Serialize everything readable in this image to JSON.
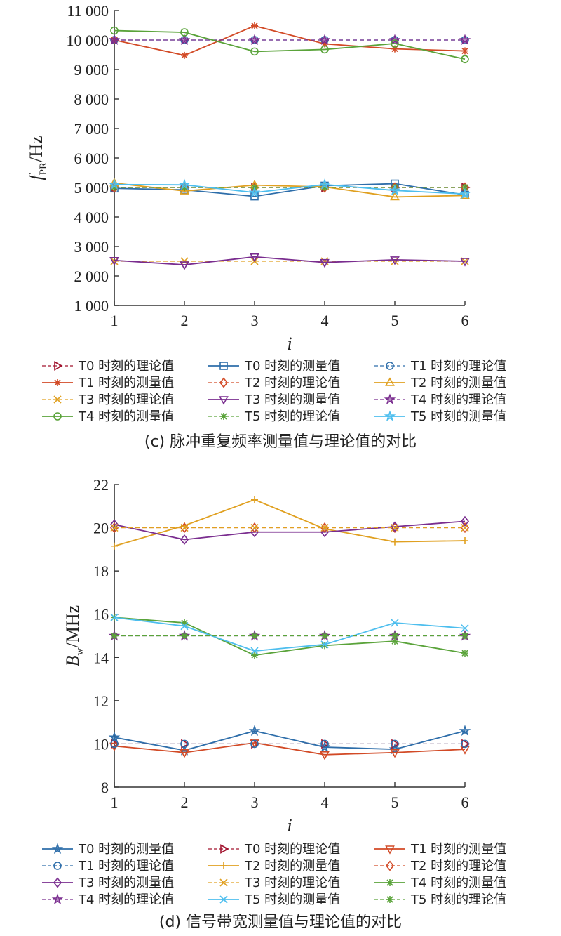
{
  "chart_data": [
    {
      "type": "line",
      "caption": "(c) 脉冲重复频率测量值与理论值的对比",
      "xlabel": "i",
      "ylabel_main": "f",
      "ylabel_sub": "PR",
      "ylabel_unit": "/Hz",
      "xlim": [
        1,
        6
      ],
      "ylim": [
        1000,
        11000
      ],
      "x": [
        1,
        2,
        3,
        4,
        5,
        6
      ],
      "xticks": [
        "1",
        "2",
        "3",
        "4",
        "5",
        "6"
      ],
      "yticks": [
        {
          "v": 1000,
          "label": "1 000"
        },
        {
          "v": 2000,
          "label": "2 000"
        },
        {
          "v": 3000,
          "label": "3 000"
        },
        {
          "v": 4000,
          "label": "4 000"
        },
        {
          "v": 5000,
          "label": "5 000"
        },
        {
          "v": 6000,
          "label": "6 000"
        },
        {
          "v": 7000,
          "label": "7 000"
        },
        {
          "v": 8000,
          "label": "8 000"
        },
        {
          "v": 9000,
          "label": "9 000"
        },
        {
          "v": 10000,
          "label": "10 000"
        },
        {
          "v": 11000,
          "label": "11 000"
        }
      ],
      "grid": false,
      "legend_position": "bottom",
      "series": [
        {
          "name": "T0 时刻的理论值",
          "color": "#a2142f",
          "dash": true,
          "marker": "tri-right",
          "values": [
            5000,
            5000,
            5000,
            5000,
            5000,
            5000
          ]
        },
        {
          "name": "T0 时刻的测量值",
          "color": "#2e6eaa",
          "dash": false,
          "marker": "square",
          "values": [
            4970,
            4920,
            4700,
            5060,
            5130,
            4750
          ]
        },
        {
          "name": "T1 时刻的理论值",
          "color": "#2e6eaa",
          "dash": true,
          "marker": "circle",
          "values": [
            10000,
            10000,
            10000,
            10000,
            10000,
            10000
          ]
        },
        {
          "name": "T1 时刻的测量值",
          "color": "#d24a26",
          "dash": false,
          "marker": "asterisk",
          "values": [
            10000,
            9480,
            10480,
            9870,
            9700,
            9630
          ]
        },
        {
          "name": "T2 时刻的理论值",
          "color": "#d24a26",
          "dash": true,
          "marker": "diamond",
          "values": [
            5000,
            5000,
            5000,
            5000,
            5000,
            5000
          ]
        },
        {
          "name": "T2 时刻的测量值",
          "color": "#e0a020",
          "dash": false,
          "marker": "tri-up",
          "values": [
            5150,
            4880,
            5080,
            5020,
            4680,
            4730
          ]
        },
        {
          "name": "T3 时刻的理论值",
          "color": "#e0a020",
          "dash": true,
          "marker": "x",
          "values": [
            2500,
            2500,
            2500,
            2500,
            2500,
            2500
          ]
        },
        {
          "name": "T3 时刻的测量值",
          "color": "#7a2d8f",
          "dash": false,
          "marker": "tri-down",
          "values": [
            2530,
            2380,
            2650,
            2460,
            2550,
            2500
          ]
        },
        {
          "name": "T4 时刻的理论值",
          "color": "#7a2d8f",
          "dash": true,
          "marker": "star",
          "values": [
            10000,
            10000,
            10000,
            10000,
            10000,
            10000
          ]
        },
        {
          "name": "T4 时刻的测量值",
          "color": "#5aa33a",
          "dash": false,
          "marker": "circle",
          "values": [
            10320,
            10260,
            9610,
            9680,
            9880,
            9350
          ]
        },
        {
          "name": "T5 时刻的理论值",
          "color": "#5aa33a",
          "dash": true,
          "marker": "asterisk",
          "values": [
            5000,
            5000,
            5000,
            5000,
            5000,
            5000
          ]
        },
        {
          "name": "T5 时刻的测量值",
          "color": "#4dbeee",
          "dash": false,
          "marker": "star",
          "values": [
            5100,
            5090,
            4830,
            5100,
            4900,
            4780
          ]
        }
      ]
    },
    {
      "type": "line",
      "caption": "(d) 信号带宽测量值与理论值的对比",
      "xlabel": "i",
      "ylabel_main": "B",
      "ylabel_sub": "w",
      "ylabel_unit": "/MHz",
      "xlim": [
        1,
        6
      ],
      "ylim": [
        8,
        22
      ],
      "x": [
        1,
        2,
        3,
        4,
        5,
        6
      ],
      "xticks": [
        "1",
        "2",
        "3",
        "4",
        "5",
        "6"
      ],
      "yticks": [
        {
          "v": 8,
          "label": "8"
        },
        {
          "v": 10,
          "label": "10"
        },
        {
          "v": 12,
          "label": "12"
        },
        {
          "v": 14,
          "label": "14"
        },
        {
          "v": 16,
          "label": "16"
        },
        {
          "v": 18,
          "label": "18"
        },
        {
          "v": 20,
          "label": "20"
        },
        {
          "v": 22,
          "label": "22"
        }
      ],
      "grid": false,
      "legend_position": "bottom",
      "series": [
        {
          "name": "T0 时刻的测量值",
          "color": "#2e6eaa",
          "dash": false,
          "marker": "star",
          "values": [
            10.3,
            9.7,
            10.6,
            9.85,
            9.75,
            10.6
          ]
        },
        {
          "name": "T0 时刻的理论值",
          "color": "#a2142f",
          "dash": true,
          "marker": "tri-right",
          "values": [
            10,
            10,
            10,
            10,
            10,
            10
          ]
        },
        {
          "name": "T1 时刻的测量值",
          "color": "#d24a26",
          "dash": false,
          "marker": "tri-down",
          "values": [
            9.9,
            9.6,
            10.05,
            9.5,
            9.6,
            9.75
          ]
        },
        {
          "name": "T1 时刻的理论值",
          "color": "#2e6eaa",
          "dash": true,
          "marker": "circle",
          "values": [
            10,
            10,
            10,
            10,
            10,
            10
          ]
        },
        {
          "name": "T2 时刻的测量值",
          "color": "#e0a020",
          "dash": false,
          "marker": "plus",
          "values": [
            19.15,
            20.1,
            21.3,
            19.95,
            19.35,
            19.4
          ]
        },
        {
          "name": "T2 时刻的理论值",
          "color": "#d24a26",
          "dash": true,
          "marker": "diamond",
          "values": [
            20,
            20,
            20,
            20,
            20,
            20
          ]
        },
        {
          "name": "T3 时刻的测量值",
          "color": "#7a2d8f",
          "dash": false,
          "marker": "diamond",
          "values": [
            20.15,
            19.45,
            19.8,
            19.8,
            20.05,
            20.3
          ]
        },
        {
          "name": "T3 时刻的理论值",
          "color": "#e0a020",
          "dash": true,
          "marker": "x",
          "values": [
            20,
            20,
            20,
            20,
            20,
            20
          ]
        },
        {
          "name": "T4 时刻的测量值",
          "color": "#5aa33a",
          "dash": false,
          "marker": "asterisk",
          "values": [
            15.85,
            15.6,
            14.1,
            14.55,
            14.75,
            14.2
          ]
        },
        {
          "name": "T4 时刻的理论值",
          "color": "#7a2d8f",
          "dash": true,
          "marker": "star",
          "values": [
            15,
            15,
            15,
            15,
            15,
            15
          ]
        },
        {
          "name": "T5 时刻的测量值",
          "color": "#4dbeee",
          "dash": false,
          "marker": "x",
          "values": [
            15.85,
            15.45,
            14.3,
            14.6,
            15.6,
            15.35
          ]
        },
        {
          "name": "T5 时刻的理论值",
          "color": "#5aa33a",
          "dash": true,
          "marker": "asterisk",
          "values": [
            15,
            15,
            15,
            15,
            15,
            15
          ]
        }
      ]
    }
  ]
}
